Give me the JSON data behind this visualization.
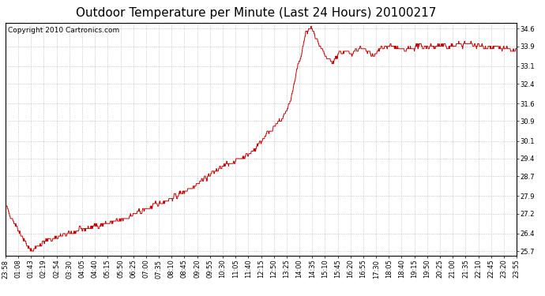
{
  "title": "Outdoor Temperature per Minute (Last 24 Hours) 20100217",
  "copyright_text": "Copyright 2010 Cartronics.com",
  "line_color": "#cc0000",
  "background_color": "#ffffff",
  "grid_color": "#aaaaaa",
  "yticks": [
    25.7,
    26.4,
    27.2,
    27.9,
    28.7,
    29.4,
    30.1,
    30.9,
    31.6,
    32.4,
    33.1,
    33.9,
    34.6
  ],
  "ylim": [
    25.5,
    34.85
  ],
  "xtick_labels": [
    "23:58",
    "01:08",
    "01:43",
    "02:19",
    "02:54",
    "03:30",
    "04:05",
    "04:40",
    "05:15",
    "05:50",
    "06:25",
    "07:00",
    "07:35",
    "08:10",
    "08:45",
    "09:20",
    "09:55",
    "10:30",
    "11:05",
    "11:40",
    "12:15",
    "12:50",
    "13:25",
    "14:00",
    "14:35",
    "15:10",
    "15:45",
    "16:20",
    "16:55",
    "17:30",
    "18:05",
    "18:40",
    "19:15",
    "19:50",
    "20:25",
    "21:00",
    "21:35",
    "22:10",
    "22:45",
    "23:20",
    "23:55"
  ],
  "title_fontsize": 11,
  "tick_fontsize": 6,
  "copyright_fontsize": 6.5,
  "keypoints_x": [
    0,
    70,
    100,
    130,
    180,
    250,
    320,
    400,
    480,
    540,
    590,
    630,
    660,
    690,
    720,
    740,
    760,
    780,
    800,
    815,
    825,
    835,
    845,
    860,
    875,
    885,
    900,
    920,
    940,
    960,
    1000,
    1040,
    1060,
    1090,
    1120,
    1160,
    1200,
    1250,
    1300,
    1350,
    1400,
    1439
  ],
  "keypoints_y": [
    27.5,
    25.7,
    26.0,
    26.2,
    26.4,
    26.7,
    26.9,
    27.4,
    27.9,
    28.4,
    28.9,
    29.2,
    29.4,
    29.6,
    30.1,
    30.5,
    30.7,
    31.0,
    31.6,
    32.5,
    33.2,
    33.7,
    34.4,
    34.65,
    34.2,
    33.8,
    33.5,
    33.2,
    33.7,
    33.6,
    33.8,
    33.5,
    33.9,
    33.9,
    33.7,
    33.9,
    33.9,
    33.9,
    34.0,
    33.9,
    33.8,
    33.7
  ]
}
